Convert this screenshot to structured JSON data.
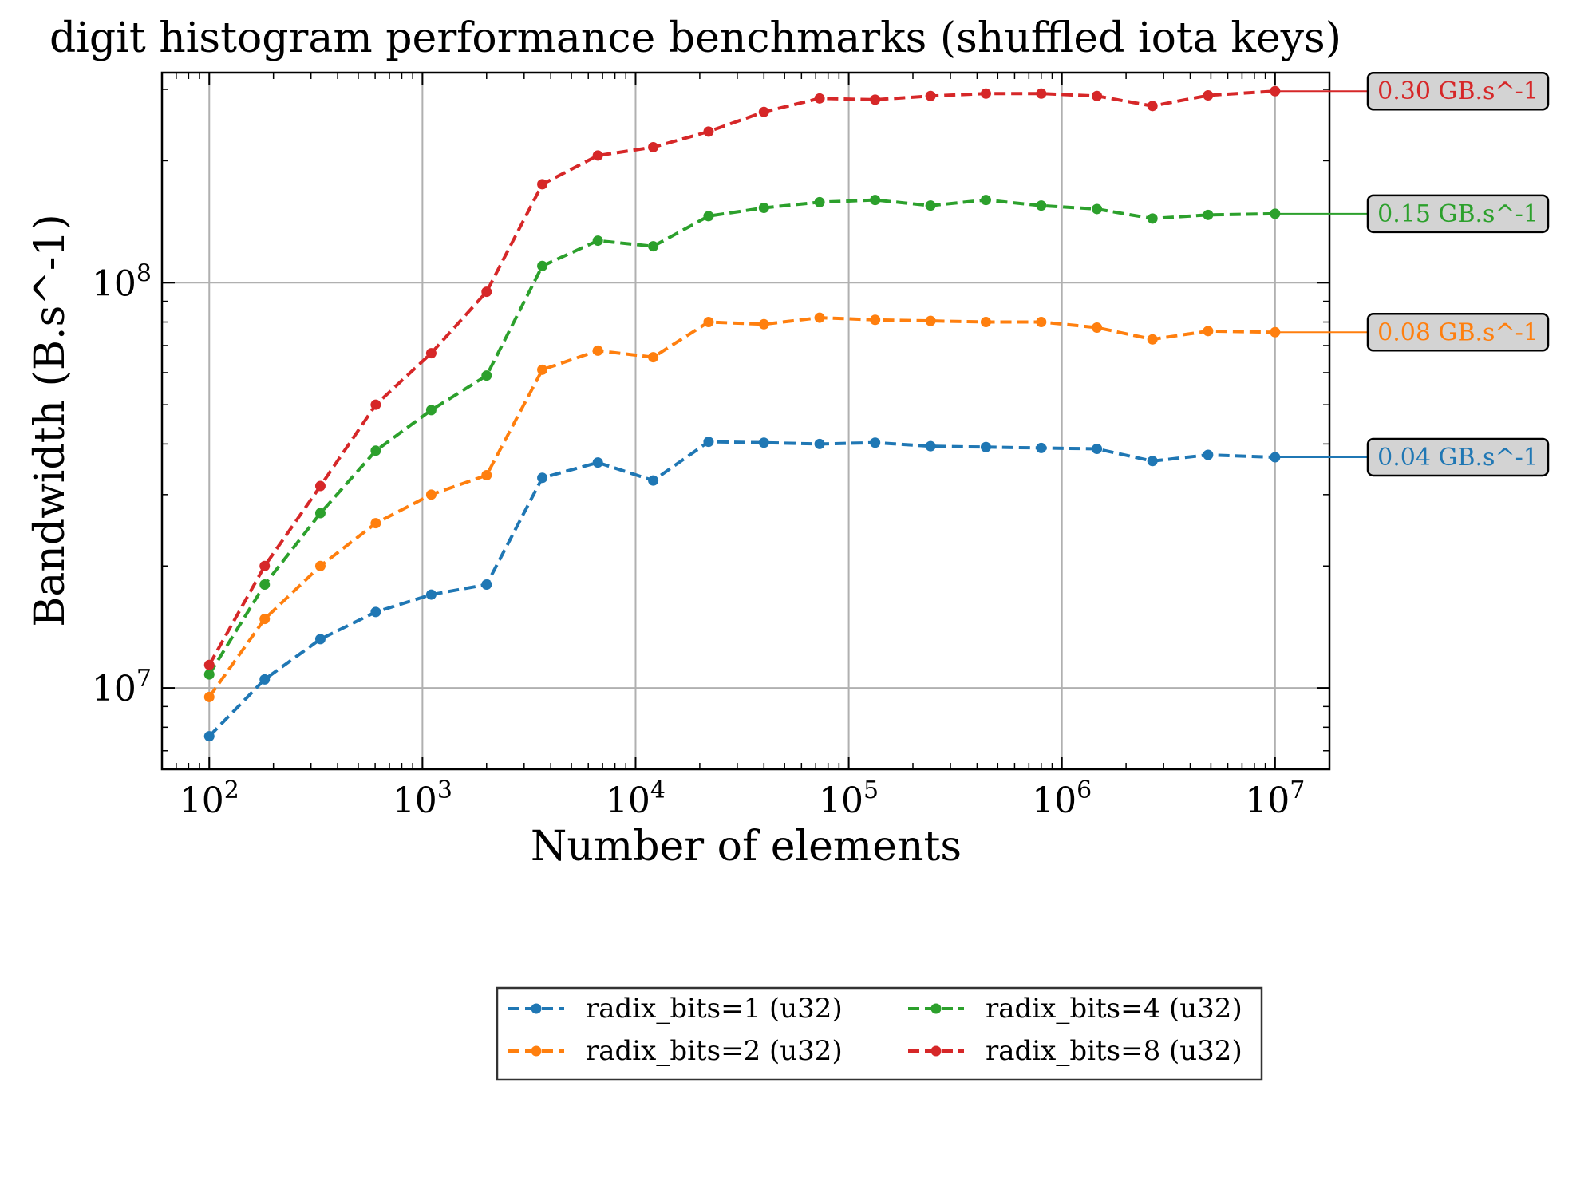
{
  "chart_data": {
    "type": "line",
    "title": "digit histogram performance benchmarks (shuffled iota keys)",
    "xlabel": "Number of elements",
    "ylabel": "Bandwidth (B.s^-1)",
    "x_scale": "log",
    "y_scale": "log",
    "xlim": [
      60,
      18000000
    ],
    "ylim": [
      6300000,
      330000000
    ],
    "grid": true,
    "x_ticks": [
      {
        "value": 100,
        "base": "10",
        "exp": "2"
      },
      {
        "value": 1000,
        "base": "10",
        "exp": "3"
      },
      {
        "value": 10000,
        "base": "10",
        "exp": "4"
      },
      {
        "value": 100000,
        "base": "10",
        "exp": "5"
      },
      {
        "value": 1000000,
        "base": "10",
        "exp": "6"
      },
      {
        "value": 10000000,
        "base": "10",
        "exp": "7"
      }
    ],
    "y_ticks": [
      {
        "value": 10000000,
        "base": "10",
        "exp": "7"
      },
      {
        "value": 100000000,
        "base": "10",
        "exp": "8"
      }
    ],
    "x": [
      100,
      182,
      332,
      604,
      1100,
      2000,
      3650,
      6650,
      12100,
      22000,
      40000,
      73000,
      133000,
      242000,
      440000,
      800000,
      1460000,
      2660000,
      4850000,
      10000000
    ],
    "series": [
      {
        "name": "radix_bits=1 (u32)",
        "color": "#1f77b4",
        "values": [
          7600000,
          10500000,
          13200000,
          15400000,
          17000000,
          18000000,
          33000000,
          36000000,
          32500000,
          40500000,
          40300000,
          40000000,
          40300000,
          39500000,
          39300000,
          39100000,
          38900000,
          36300000,
          37600000,
          37100000
        ],
        "end_label": "0.04 GB.s^-1"
      },
      {
        "name": "radix_bits=2 (u32)",
        "color": "#ff7f0e",
        "values": [
          9500000,
          14800000,
          20000000,
          25500000,
          30000000,
          33500000,
          61000000,
          68000000,
          65500000,
          80000000,
          79000000,
          82000000,
          81000000,
          80500000,
          80000000,
          80000000,
          77500000,
          72500000,
          76000000,
          75500000
        ],
        "end_label": "0.08 GB.s^-1"
      },
      {
        "name": "radix_bits=4 (u32)",
        "color": "#2ca02c",
        "values": [
          10800000,
          18000000,
          27000000,
          38500000,
          48500000,
          59000000,
          110000000,
          127000000,
          123000000,
          146000000,
          153000000,
          158000000,
          160000000,
          155000000,
          160000000,
          155000000,
          152000000,
          144000000,
          147000000,
          148000000
        ],
        "end_label": "0.15 GB.s^-1"
      },
      {
        "name": "radix_bits=8 (u32)",
        "color": "#d62728",
        "values": [
          11400000,
          20000000,
          31500000,
          50000000,
          67000000,
          95000000,
          175000000,
          206000000,
          216000000,
          236000000,
          264000000,
          285000000,
          283000000,
          289000000,
          293000000,
          293000000,
          289000000,
          273000000,
          290000000,
          297000000
        ],
        "end_label": "0.30 GB.s^-1"
      }
    ],
    "legend": {
      "placement": "bottom-center",
      "columns": 2
    }
  }
}
